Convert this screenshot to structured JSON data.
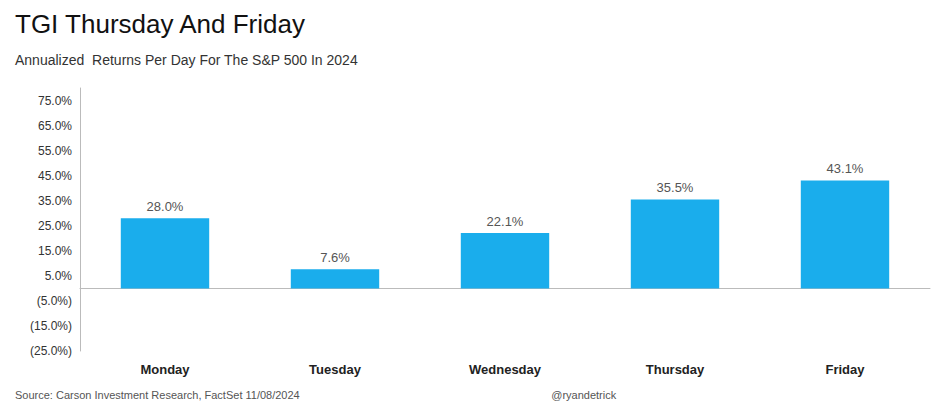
{
  "chart_data": {
    "type": "bar",
    "title": "TGI Thursday And Friday",
    "subtitle": "Annualized  Returns Per Day For The S&P 500 In 2024",
    "categories": [
      "Monday",
      "Tuesday",
      "Wednesday",
      "Thursday",
      "Friday"
    ],
    "values": [
      28.0,
      7.6,
      22.1,
      35.5,
      43.1
    ],
    "value_labels": [
      "28.0%",
      "7.6%",
      "22.1%",
      "35.5%",
      "43.1%"
    ],
    "data_labels": true,
    "color": "#1AADEC",
    "ylim": [
      -25,
      80
    ],
    "yticks": [
      {
        "value": 75,
        "label": "75.0%"
      },
      {
        "value": 65,
        "label": "65.0%"
      },
      {
        "value": 55,
        "label": "55.0%"
      },
      {
        "value": 45,
        "label": "45.0%"
      },
      {
        "value": 35,
        "label": "35.0%"
      },
      {
        "value": 25,
        "label": "25.0%"
      },
      {
        "value": 15,
        "label": "15.0%"
      },
      {
        "value": 5,
        "label": "5.0%"
      },
      {
        "value": -5,
        "label": "(5.0%)"
      },
      {
        "value": -15,
        "label": "(15.0%)"
      },
      {
        "value": -25,
        "label": "(25.0%)"
      }
    ],
    "annotations": [
      "Source: Carson Investment Research, FactSet 11/08/2024",
      "@ryandetrick"
    ],
    "grid": false
  }
}
